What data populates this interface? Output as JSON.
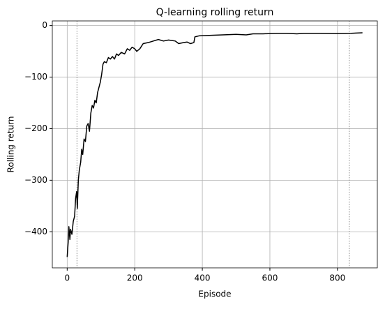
{
  "chart_data": {
    "type": "line",
    "title": "Q-learning rolling return",
    "xlabel": "Episode",
    "ylabel": "Rolling return",
    "x": [
      0,
      3,
      5,
      8,
      10,
      14,
      18,
      22,
      25,
      28,
      30,
      33,
      36,
      40,
      43,
      46,
      50,
      54,
      58,
      62,
      66,
      70,
      74,
      78,
      82,
      86,
      90,
      94,
      98,
      102,
      106,
      110,
      116,
      122,
      128,
      134,
      140,
      146,
      152,
      160,
      170,
      178,
      185,
      192,
      200,
      206,
      215,
      225,
      240,
      255,
      270,
      285,
      300,
      320,
      330,
      345,
      355,
      365,
      375,
      378,
      390,
      420,
      460,
      500,
      530,
      550,
      580,
      620,
      650,
      680,
      700,
      750,
      800,
      840,
      874
    ],
    "values": [
      -449,
      -420,
      -390,
      -415,
      -395,
      -405,
      -380,
      -370,
      -335,
      -322,
      -355,
      -300,
      -280,
      -265,
      -240,
      -250,
      -220,
      -225,
      -195,
      -190,
      -205,
      -170,
      -155,
      -160,
      -145,
      -150,
      -130,
      -120,
      -110,
      -95,
      -75,
      -70,
      -72,
      -62,
      -65,
      -60,
      -65,
      -55,
      -58,
      -52,
      -55,
      -45,
      -48,
      -42,
      -45,
      -50,
      -45,
      -35,
      -33,
      -30,
      -27,
      -30,
      -28,
      -30,
      -35,
      -33,
      -32,
      -35,
      -33,
      -22,
      -20,
      -19,
      -18,
      -17,
      -18,
      -16,
      -16,
      -15,
      -15,
      -16,
      -15,
      -15,
      -15.5,
      -15,
      -14
    ],
    "color": "#000000",
    "vlines": [
      29,
      835
    ],
    "xlim": [
      -44,
      918
    ],
    "xticks": [
      0,
      200,
      400,
      600,
      800
    ],
    "ylim": [
      -470,
      9
    ],
    "yticks": [
      0,
      {
        "value": -100,
        "label": "−100"
      },
      {
        "value": -200,
        "label": "−200"
      },
      {
        "value": -300,
        "label": "−300"
      },
      {
        "value": -400,
        "label": "−400"
      }
    ],
    "grid": true
  }
}
